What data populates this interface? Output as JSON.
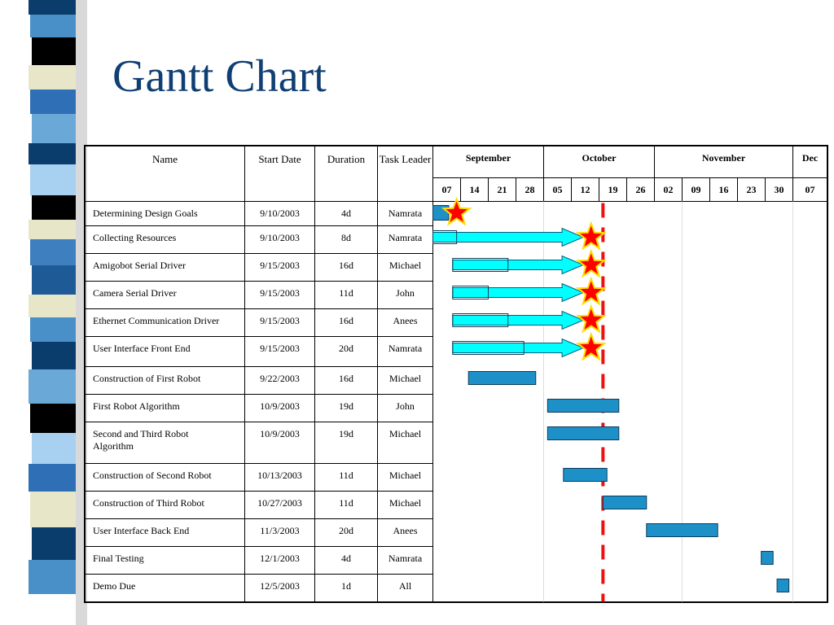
{
  "title": "Gantt Chart",
  "headers": {
    "name": "Name",
    "start_date": "Start Date",
    "duration": "Duration",
    "task_leader": "Task Leader"
  },
  "colors": {
    "title": "#0f3f73",
    "bar": "#1e90c8",
    "arrow": "#00ffff",
    "star": "#ff0000",
    "today_line": "#ee1111"
  },
  "chart_data": {
    "type": "gantt",
    "title": "Gantt Chart",
    "months": [
      {
        "label": "September",
        "span": 4
      },
      {
        "label": "October",
        "span": 4
      },
      {
        "label": "November",
        "span": 5
      },
      {
        "label": "Dec",
        "span": 1
      }
    ],
    "weeks": [
      "07",
      "14",
      "21",
      "28",
      "05",
      "12",
      "19",
      "26",
      "02",
      "09",
      "16",
      "23",
      "30",
      "07"
    ],
    "week_dates": [
      "2003-09-07",
      "2003-09-14",
      "2003-09-21",
      "2003-09-28",
      "2003-10-05",
      "2003-10-12",
      "2003-10-19",
      "2003-10-26",
      "2003-11-02",
      "2003-11-09",
      "2003-11-16",
      "2003-11-23",
      "2003-11-30",
      "2003-12-07"
    ],
    "today_line": "2003-10-20",
    "tasks": [
      {
        "name": "Determining Design Goals",
        "start": "9/10/2003",
        "duration": "4d",
        "leader": "Namrata",
        "bar_start": "2003-09-07",
        "bar_end": "2003-09-11",
        "arrow_end": null,
        "star": "2003-09-13"
      },
      {
        "name": "Collecting Resources",
        "start": "9/10/2003",
        "duration": "8d",
        "leader": "Namrata",
        "bar_start": "2003-09-07",
        "bar_end": "2003-09-13",
        "arrow_end": "2003-10-15",
        "star": "2003-10-17"
      },
      {
        "name": "Amigobot Serial Driver",
        "start": "9/15/2003",
        "duration": "16d",
        "leader": "Michael",
        "bar_start": "2003-09-12",
        "bar_end": "2003-09-26",
        "arrow_end": "2003-10-15",
        "star": "2003-10-17"
      },
      {
        "name": "Camera Serial Driver",
        "start": "9/15/2003",
        "duration": "11d",
        "leader": "John",
        "bar_start": "2003-09-12",
        "bar_end": "2003-09-21",
        "arrow_end": "2003-10-15",
        "star": "2003-10-17"
      },
      {
        "name": "Ethernet Communication Driver",
        "start": "9/15/2003",
        "duration": "16d",
        "leader": "Anees",
        "bar_start": "2003-09-12",
        "bar_end": "2003-09-26",
        "arrow_end": "2003-10-15",
        "star": "2003-10-17"
      },
      {
        "name": "User Interface Front End",
        "start": "9/15/2003",
        "duration": "20d",
        "leader": "Namrata",
        "bar_start": "2003-09-12",
        "bar_end": "2003-09-30",
        "arrow_end": "2003-10-15",
        "star": "2003-10-17"
      },
      {
        "name": "Construction of First Robot",
        "start": "9/22/2003",
        "duration": "16d",
        "leader": "Michael",
        "bar_start": "2003-09-16",
        "bar_end": "2003-10-03",
        "arrow_end": null,
        "star": null
      },
      {
        "name": "First Robot Algorithm",
        "start": "10/9/2003",
        "duration": "19d",
        "leader": "John",
        "bar_start": "2003-10-06",
        "bar_end": "2003-10-24",
        "arrow_end": null,
        "star": null
      },
      {
        "name": "Second and Third Robot Algorithm",
        "start": "10/9/2003",
        "duration": "19d",
        "leader": "Michael",
        "bar_start": "2003-10-06",
        "bar_end": "2003-10-24",
        "arrow_end": null,
        "star": null
      },
      {
        "name": "Construction of Second Robot",
        "start": "10/13/2003",
        "duration": "11d",
        "leader": "Michael",
        "bar_start": "2003-10-10",
        "bar_end": "2003-10-21",
        "arrow_end": null,
        "star": null
      },
      {
        "name": "Construction of Third Robot",
        "start": "10/27/2003",
        "duration": "11d",
        "leader": "Michael",
        "bar_start": "2003-10-20",
        "bar_end": "2003-10-31",
        "arrow_end": null,
        "star": null
      },
      {
        "name": "User Interface Back End",
        "start": "11/3/2003",
        "duration": "20d",
        "leader": "Anees",
        "bar_start": "2003-10-31",
        "bar_end": "2003-11-18",
        "arrow_end": null,
        "star": null
      },
      {
        "name": "Final Testing",
        "start": "12/1/2003",
        "duration": "4d",
        "leader": "Namrata",
        "bar_start": "2003-11-29",
        "bar_end": "2003-12-02",
        "arrow_end": null,
        "star": null
      },
      {
        "name": "Demo Due",
        "start": "12/5/2003",
        "duration": "1d",
        "leader": "All",
        "bar_start": "2003-12-03",
        "bar_end": "2003-12-06",
        "arrow_end": null,
        "star": null
      }
    ]
  }
}
